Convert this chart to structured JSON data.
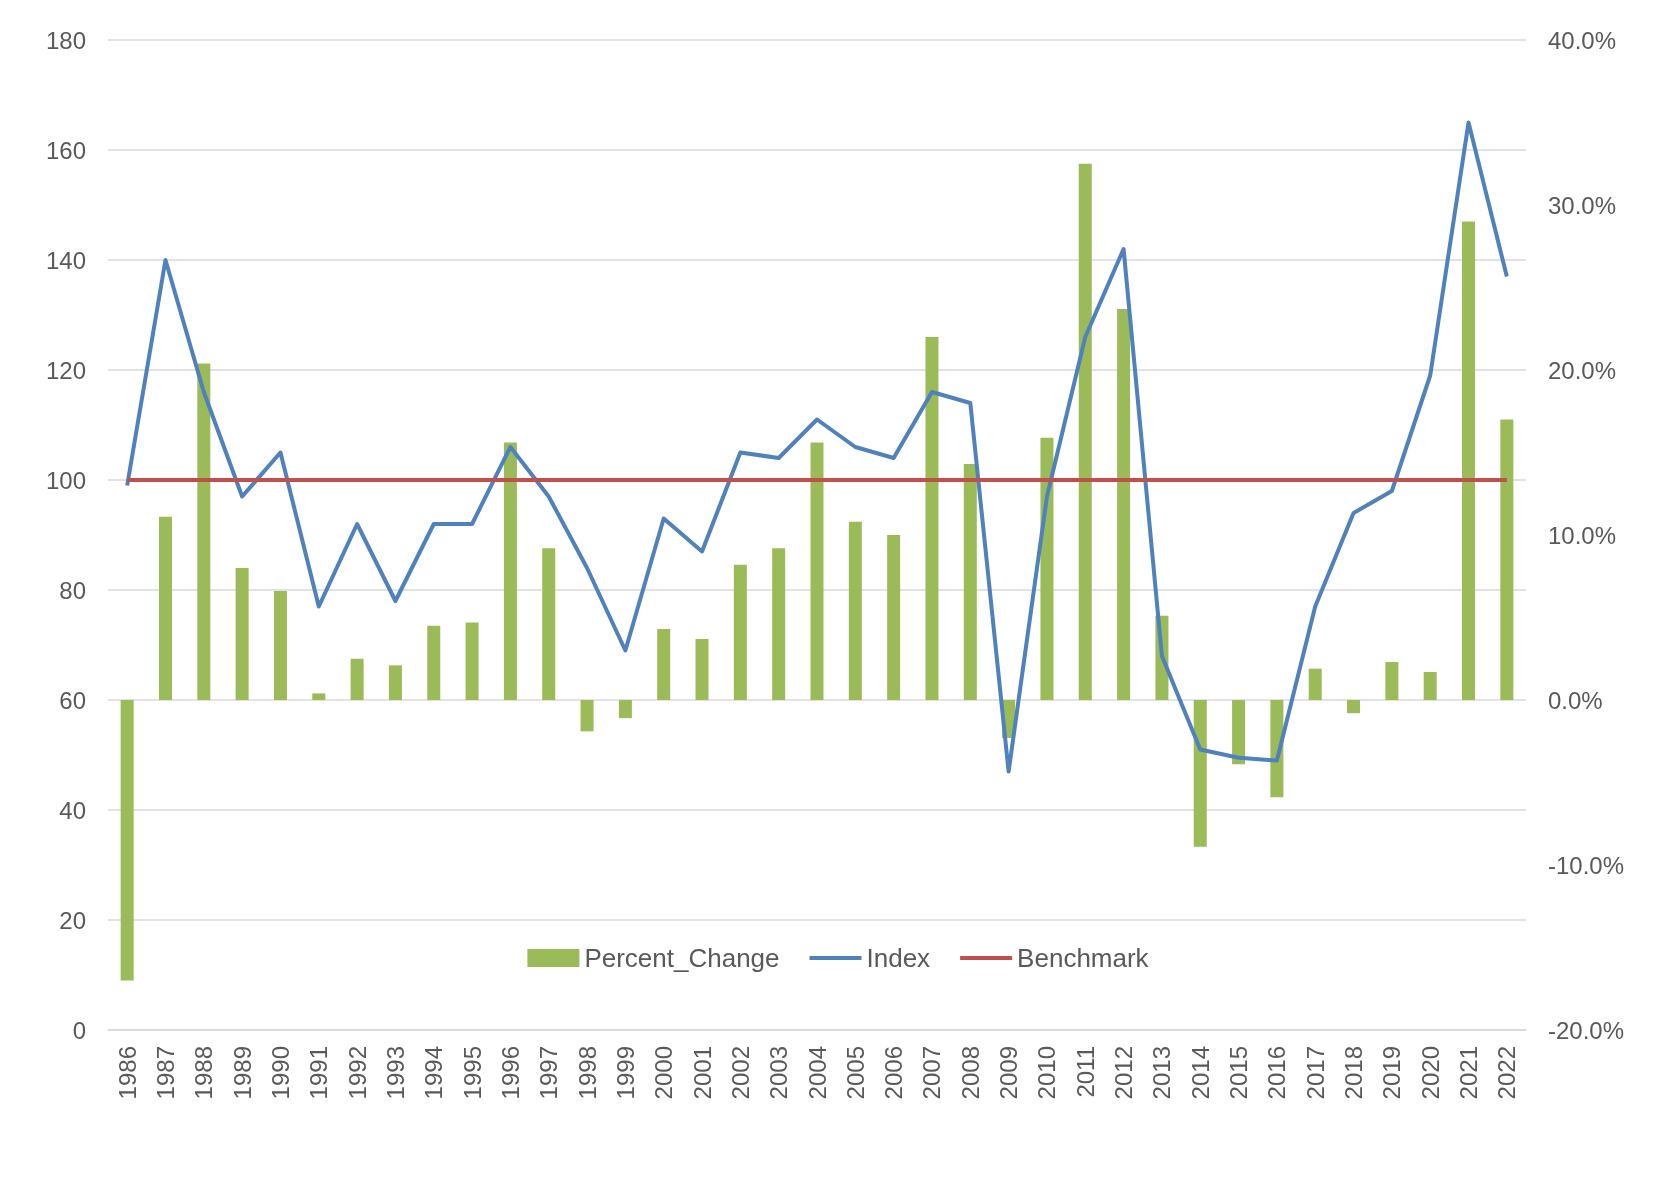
{
  "chart_data": {
    "type": "bar",
    "categories": [
      "1986",
      "1987",
      "1988",
      "1989",
      "1990",
      "1991",
      "1992",
      "1993",
      "1994",
      "1995",
      "1996",
      "1997",
      "1998",
      "1999",
      "2000",
      "2001",
      "2002",
      "2003",
      "2004",
      "2005",
      "2006",
      "2007",
      "2008",
      "2009",
      "2010",
      "2011",
      "2012",
      "2013",
      "2014",
      "2015",
      "2016",
      "2017",
      "2018",
      "2019",
      "2020",
      "2021",
      "2022"
    ],
    "series": [
      {
        "name": "Percent_Change",
        "axis": "y2",
        "color": "#9bbb59",
        "values": [
          -17.0,
          11.1,
          20.4,
          8.0,
          6.6,
          0.4,
          2.5,
          2.1,
          4.5,
          4.7,
          15.6,
          9.2,
          -1.9,
          -1.1,
          4.3,
          3.7,
          8.2,
          9.2,
          15.6,
          10.8,
          10.0,
          22.0,
          14.3,
          -2.3,
          15.9,
          32.5,
          23.7,
          5.1,
          -8.9,
          -3.9,
          -5.9,
          1.9,
          -0.8,
          2.3,
          1.7,
          29.0,
          17.0
        ]
      },
      {
        "name": "Index",
        "type": "line",
        "color": "#4f81bd",
        "values": [
          99,
          140,
          116,
          97,
          105,
          77,
          92,
          78,
          92,
          92,
          106,
          97,
          84,
          69,
          93,
          87,
          105,
          104,
          111,
          106,
          104,
          116,
          114,
          47,
          97,
          126,
          142,
          68,
          51,
          49.5,
          49,
          77,
          94,
          98,
          119,
          165,
          137
        ]
      },
      {
        "name": "Benchmark",
        "type": "line",
        "color": "#c0504d",
        "values": [
          100,
          100,
          100,
          100,
          100,
          100,
          100,
          100,
          100,
          100,
          100,
          100,
          100,
          100,
          100,
          100,
          100,
          100,
          100,
          100,
          100,
          100,
          100,
          100,
          100,
          100,
          100,
          100,
          100,
          100,
          100,
          100,
          100,
          100,
          100,
          100,
          100
        ]
      }
    ],
    "ylim": [
      0,
      180
    ],
    "yticks": [
      0,
      20,
      40,
      60,
      80,
      100,
      120,
      140,
      160,
      180
    ],
    "y2lim": [
      -20,
      40
    ],
    "y2ticks": [
      {
        "value": -20,
        "label": "-20.0%"
      },
      {
        "value": -10,
        "label": "-10.0%"
      },
      {
        "value": 0,
        "label": "0.0%"
      },
      {
        "value": 10,
        "label": "10.0%"
      },
      {
        "value": 20,
        "label": "20.0%"
      },
      {
        "value": 30,
        "label": "30.0%"
      },
      {
        "value": 40,
        "label": "40.0%"
      }
    ],
    "grid": "y",
    "legend": "bottom",
    "marker": "none",
    "line_style": "solid"
  }
}
